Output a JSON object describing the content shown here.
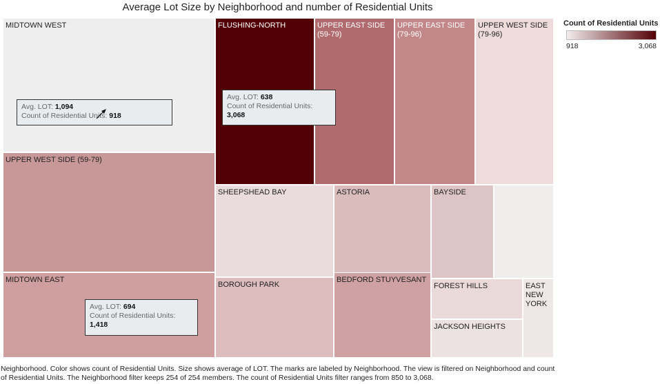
{
  "title": "Average Lot Size by Neighborhood and number of Residential Units",
  "legend": {
    "title": "Count of Residential Units",
    "min_label": "918",
    "max_label": "3,068",
    "min_color": "#f3eded",
    "max_color": "#520006"
  },
  "chart_data": {
    "type": "treemap",
    "size_measure": "Avg. LOT",
    "color_measure": "Count of Residential Units",
    "tiles": [
      {
        "label": "MIDTOWN WEST",
        "avg_lot": 1094,
        "units": 918,
        "color": "#eeeeee"
      },
      {
        "label": "UPPER WEST SIDE (59-79)",
        "color": "#c89898"
      },
      {
        "label": "MIDTOWN EAST",
        "avg_lot": 694,
        "units": 1418,
        "color": "#cf9e9e"
      },
      {
        "label": "FLUSHING-NORTH",
        "avg_lot": 638,
        "units": 3068,
        "color": "#520006"
      },
      {
        "label": "UPPER EAST SIDE\n(59-79)",
        "color": "#b06b6e"
      },
      {
        "label": "UPPER EAST SIDE\n(79-96)",
        "color": "#c28889"
      },
      {
        "label": "UPPER WEST SIDE\n(79-96)",
        "color": "#eedcdc"
      },
      {
        "label": "SHEEPSHEAD BAY",
        "color": "#eadcdc"
      },
      {
        "label": "ASTORIA",
        "color": "#dbbcbc"
      },
      {
        "label": "BAYSIDE",
        "color": "#dec5c5"
      },
      {
        "label": "",
        "color": "#f0eded"
      },
      {
        "label": "BOROUGH PARK",
        "color": "#dcbcbc"
      },
      {
        "label": "BEDFORD STUYVESANT",
        "color": "#cfa1a3"
      },
      {
        "label": "FOREST HILLS",
        "color": "#e9d9d9"
      },
      {
        "label": "JACKSON HEIGHTS",
        "color": "#ede2e2"
      },
      {
        "label": "EAST\nNEW\nYORK",
        "color": "#efe6e6"
      }
    ]
  },
  "tooltips": [
    {
      "lot_label": "Avg. LOT:",
      "lot_value": "1,094",
      "units_label": "Count of Residential Units:",
      "units_value": "918"
    },
    {
      "lot_label": "Avg. LOT:",
      "lot_value": "638",
      "units_label": "Count of Residential Units:",
      "units_value": "3,068"
    },
    {
      "lot_label": "Avg. LOT:",
      "lot_value": "694",
      "units_label": "Count of Residential Units:",
      "units_value": "1,418"
    }
  ],
  "caption": "Neighborhood.  Color shows count of Residential Units.  Size shows average of LOT.  The marks are labeled by Neighborhood. The view is filtered on Neighborhood and count of Residential Units. The Neighborhood filter keeps 254 of 254 members. The count of Residential Units filter ranges from 850 to 3,068."
}
